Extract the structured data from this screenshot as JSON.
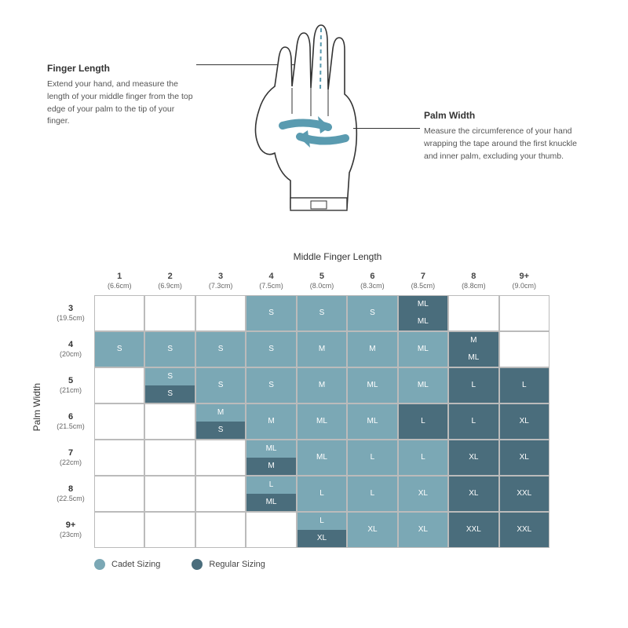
{
  "colors": {
    "cadet": "#7ba8b5",
    "regular": "#4a6d7c",
    "arrow": "#5a9bb0",
    "outline": "#333333"
  },
  "finger": {
    "title": "Finger Length",
    "desc": "Extend your hand, and measure the length of your middle finger from the top edge of your palm to the tip of your finger."
  },
  "palm": {
    "title": "Palm Width",
    "desc": "Measure the circumference of your hand wrapping the tape around the first knuckle and inner palm, excluding your thumb."
  },
  "axes": {
    "x_title": "Middle Finger Length",
    "y_title": "Palm Width"
  },
  "cols": [
    {
      "n": "1",
      "u": "(6.6cm)"
    },
    {
      "n": "2",
      "u": "(6.9cm)"
    },
    {
      "n": "3",
      "u": "(7.3cm)"
    },
    {
      "n": "4",
      "u": "(7.5cm)"
    },
    {
      "n": "5",
      "u": "(8.0cm)"
    },
    {
      "n": "6",
      "u": "(8.3cm)"
    },
    {
      "n": "7",
      "u": "(8.5cm)"
    },
    {
      "n": "8",
      "u": "(8.8cm)"
    },
    {
      "n": "9+",
      "u": "(9.0cm)"
    }
  ],
  "rows": [
    {
      "n": "3",
      "u": "(19.5cm)"
    },
    {
      "n": "4",
      "u": "(20cm)"
    },
    {
      "n": "5",
      "u": "(21cm)"
    },
    {
      "n": "6",
      "u": "(21.5cm)"
    },
    {
      "n": "7",
      "u": "(22cm)"
    },
    {
      "n": "8",
      "u": "(22.5cm)"
    },
    {
      "n": "9+",
      "u": "(23cm)"
    }
  ],
  "cells": [
    [
      null,
      null,
      null,
      {
        "t": "S",
        "c": "cadet"
      },
      {
        "t": "S",
        "c": "cadet"
      },
      {
        "t": "S",
        "c": "cadet"
      },
      [
        {
          "t": "ML",
          "c": "regular"
        },
        {
          "t": "ML",
          "c": "regular"
        }
      ],
      null,
      null
    ],
    [
      {
        "t": "S",
        "c": "cadet"
      },
      {
        "t": "S",
        "c": "cadet"
      },
      {
        "t": "S",
        "c": "cadet"
      },
      {
        "t": "S",
        "c": "cadet"
      },
      {
        "t": "M",
        "c": "cadet"
      },
      {
        "t": "M",
        "c": "cadet"
      },
      {
        "t": "ML",
        "c": "cadet"
      },
      [
        {
          "t": "M",
          "c": "regular"
        },
        {
          "t": "ML",
          "c": "regular"
        }
      ],
      null
    ],
    [
      null,
      [
        {
          "t": "S",
          "c": "cadet"
        },
        {
          "t": "S",
          "c": "regular"
        }
      ],
      {
        "t": "S",
        "c": "cadet"
      },
      {
        "t": "S",
        "c": "cadet"
      },
      {
        "t": "M",
        "c": "cadet"
      },
      {
        "t": "ML",
        "c": "cadet"
      },
      {
        "t": "ML",
        "c": "cadet"
      },
      {
        "t": "L",
        "c": "regular"
      },
      {
        "t": "L",
        "c": "regular"
      }
    ],
    [
      null,
      null,
      [
        {
          "t": "M",
          "c": "cadet"
        },
        {
          "t": "S",
          "c": "regular"
        }
      ],
      {
        "t": "M",
        "c": "cadet"
      },
      {
        "t": "ML",
        "c": "cadet"
      },
      {
        "t": "ML",
        "c": "cadet"
      },
      {
        "t": "L",
        "c": "regular"
      },
      {
        "t": "L",
        "c": "regular"
      },
      {
        "t": "XL",
        "c": "regular"
      }
    ],
    [
      null,
      null,
      null,
      [
        {
          "t": "ML",
          "c": "cadet"
        },
        {
          "t": "M",
          "c": "regular"
        }
      ],
      {
        "t": "ML",
        "c": "cadet"
      },
      {
        "t": "L",
        "c": "cadet"
      },
      {
        "t": "L",
        "c": "cadet"
      },
      {
        "t": "XL",
        "c": "regular"
      },
      {
        "t": "XL",
        "c": "regular"
      }
    ],
    [
      null,
      null,
      null,
      [
        {
          "t": "L",
          "c": "cadet"
        },
        {
          "t": "ML",
          "c": "regular"
        }
      ],
      {
        "t": "L",
        "c": "cadet"
      },
      {
        "t": "L",
        "c": "cadet"
      },
      {
        "t": "XL",
        "c": "cadet"
      },
      {
        "t": "XL",
        "c": "regular"
      },
      {
        "t": "XXL",
        "c": "regular"
      }
    ],
    [
      null,
      null,
      null,
      null,
      [
        {
          "t": "L",
          "c": "cadet"
        },
        {
          "t": "XL",
          "c": "regular"
        }
      ],
      {
        "t": "XL",
        "c": "cadet"
      },
      {
        "t": "XL",
        "c": "cadet"
      },
      {
        "t": "XXL",
        "c": "regular"
      },
      {
        "t": "XXL",
        "c": "regular"
      }
    ]
  ],
  "legend": {
    "cadet": "Cadet Sizing",
    "regular": "Regular Sizing"
  }
}
